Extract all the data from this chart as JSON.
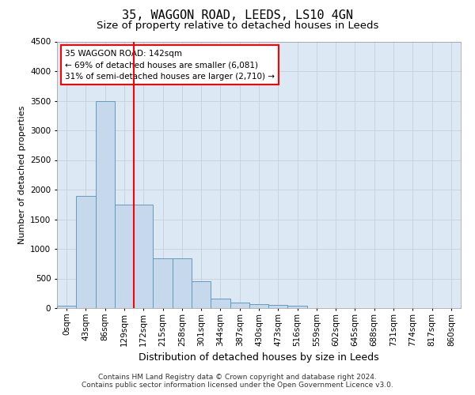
{
  "title": "35, WAGGON ROAD, LEEDS, LS10 4GN",
  "subtitle": "Size of property relative to detached houses in Leeds",
  "xlabel": "Distribution of detached houses by size in Leeds",
  "ylabel": "Number of detached properties",
  "footer_line1": "Contains HM Land Registry data © Crown copyright and database right 2024.",
  "footer_line2": "Contains public sector information licensed under the Open Government Licence v3.0.",
  "bar_labels": [
    "0sqm",
    "43sqm",
    "86sqm",
    "129sqm",
    "172sqm",
    "215sqm",
    "258sqm",
    "301sqm",
    "344sqm",
    "387sqm",
    "430sqm",
    "473sqm",
    "516sqm",
    "559sqm",
    "602sqm",
    "645sqm",
    "688sqm",
    "731sqm",
    "774sqm",
    "817sqm",
    "860sqm"
  ],
  "bar_values": [
    40,
    1900,
    3500,
    1750,
    1750,
    840,
    840,
    450,
    160,
    100,
    70,
    50,
    40,
    0,
    0,
    0,
    0,
    0,
    0,
    0,
    0
  ],
  "bar_color": "#c6d8ec",
  "bar_edge_color": "#6699bb",
  "vline_x": 3.5,
  "vline_color": "red",
  "annotation_line1": "35 WAGGON ROAD: 142sqm",
  "annotation_line2": "← 69% of detached houses are smaller (6,081)",
  "annotation_line3": "31% of semi-detached houses are larger (2,710) →",
  "ylim": [
    0,
    4500
  ],
  "yticks": [
    0,
    500,
    1000,
    1500,
    2000,
    2500,
    3000,
    3500,
    4000,
    4500
  ],
  "grid_color": "#c8d0dc",
  "bg_color": "#dce8f4",
  "title_fontsize": 11,
  "subtitle_fontsize": 9.5,
  "ylabel_fontsize": 8,
  "xlabel_fontsize": 9,
  "tick_fontsize": 7.5,
  "footer_fontsize": 6.5,
  "annotation_fontsize": 7.5
}
